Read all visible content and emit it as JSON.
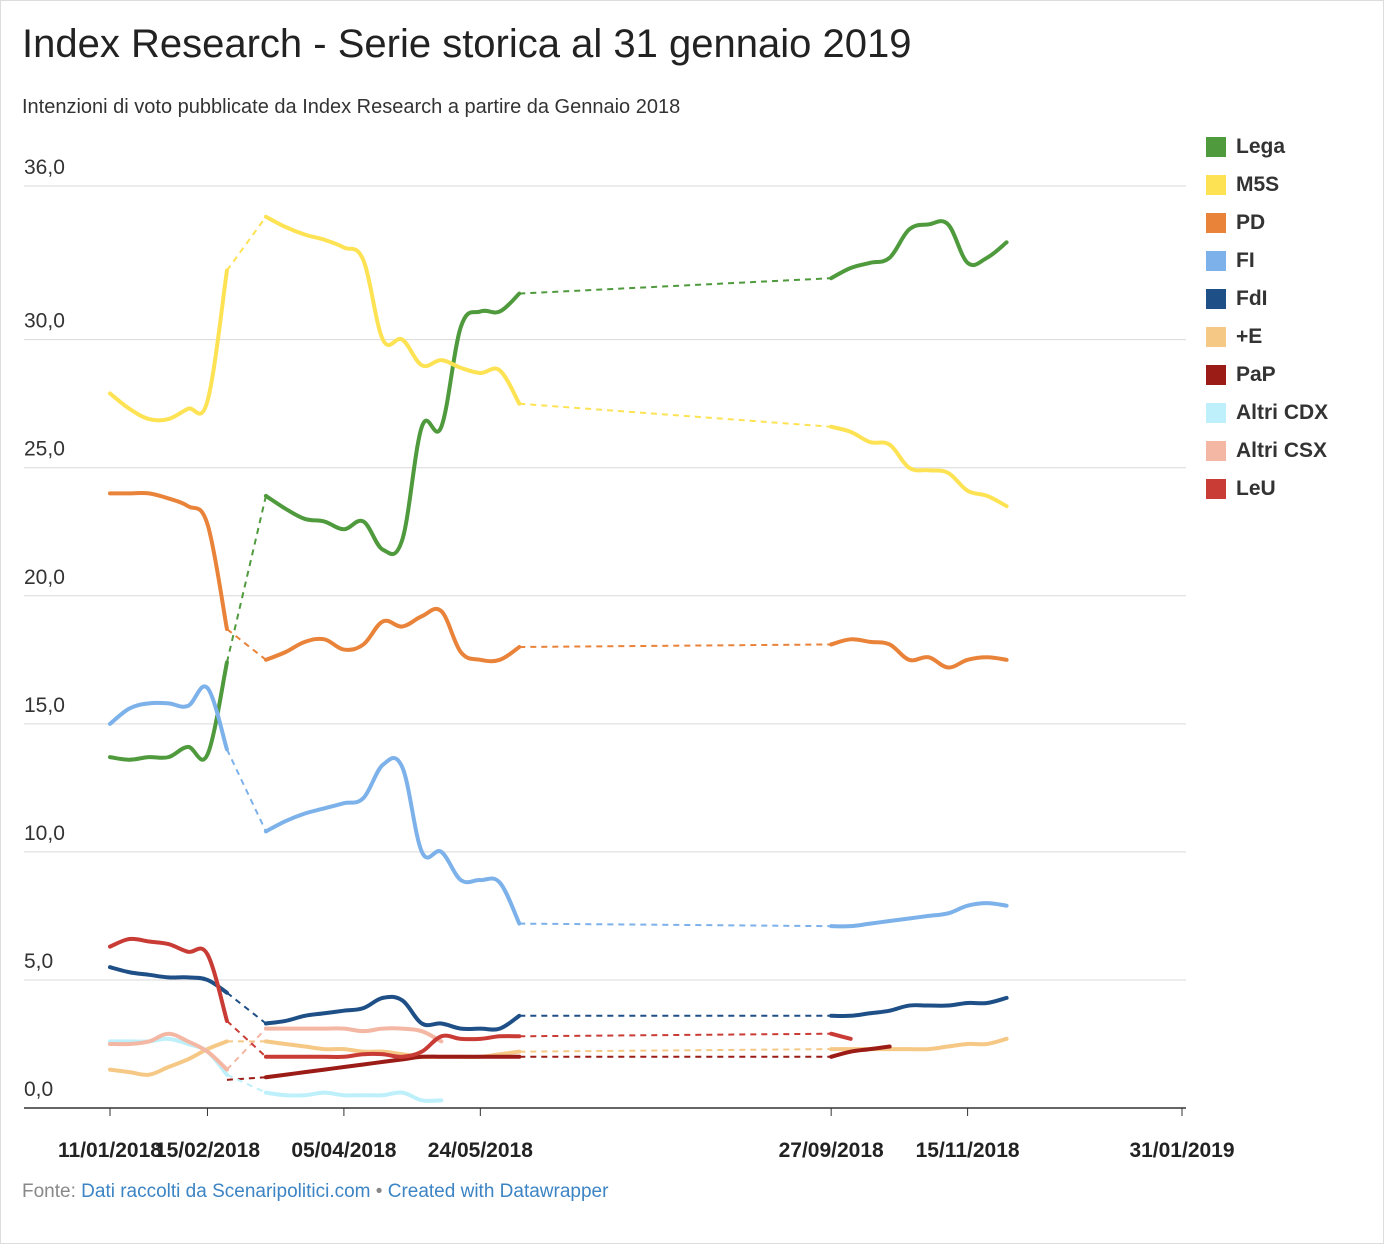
{
  "header": {
    "title": "Index Research - Serie storica al 31 gennaio 2019",
    "subtitle": "Intenzioni di voto pubblicate da Index Research a partire da Gennaio 2018"
  },
  "footer": {
    "prefix": "Fonte:",
    "source_link": "Dati raccolti da Scenaripolitici.com",
    "separator": "•",
    "credit_link": "Created with Datawrapper"
  },
  "chart_data": {
    "type": "line",
    "ylim": [
      0,
      36
    ],
    "y_ticks": [
      0,
      5,
      10,
      15,
      20,
      25,
      30,
      36
    ],
    "y_tick_labels": [
      "0,0",
      "5,0",
      "10,0",
      "15,0",
      "20,0",
      "25,0",
      "30,0",
      "36,0"
    ],
    "grid": "horizontal",
    "legend_position": "right",
    "x_tick_labels": [
      "11/01/2018",
      "15/02/2018",
      "05/04/2018",
      "24/05/2018",
      "27/09/2018",
      "15/11/2018",
      "31/01/2019"
    ],
    "x": [
      "11/01/2018",
      "18/01/2018",
      "25/01/2018",
      "01/02/2018",
      "08/02/2018",
      "15/02/2018",
      "22/02/2018",
      "08/03/2018",
      "15/03/2018",
      "22/03/2018",
      "29/03/2018",
      "05/04/2018",
      "12/04/2018",
      "19/04/2018",
      "26/04/2018",
      "03/05/2018",
      "10/05/2018",
      "17/05/2018",
      "24/05/2018",
      "31/05/2018",
      "07/06/2018",
      "27/09/2018",
      "04/10/2018",
      "11/10/2018",
      "18/10/2018",
      "25/10/2018",
      "01/11/2018",
      "08/11/2018",
      "15/11/2018",
      "22/11/2018",
      "29/11/2018",
      "06/12/2018",
      "13/12/2018",
      "20/12/2018",
      "10/01/2019",
      "17/01/2019",
      "24/01/2019",
      "31/01/2019"
    ],
    "series": [
      {
        "name": "Lega",
        "color": "#4e9a3c",
        "values": [
          13.7,
          13.6,
          13.7,
          13.7,
          14.1,
          13.8,
          17.4,
          23.9,
          23.4,
          23.0,
          22.9,
          22.6,
          22.9,
          21.8,
          22.2,
          26.6,
          26.6,
          30.5,
          31.1,
          31.1,
          31.8,
          32.4,
          32.8,
          33.0,
          33.2,
          34.3,
          34.5,
          34.5,
          33.0,
          33.2,
          33.8,
          null,
          null,
          null,
          null,
          null,
          null,
          null
        ]
      },
      {
        "name": "M5S",
        "color": "#fde354",
        "values": [
          27.9,
          27.3,
          26.9,
          26.9,
          27.3,
          27.6,
          32.7,
          34.8,
          34.4,
          34.1,
          33.9,
          33.6,
          33.1,
          30.0,
          30.0,
          29.0,
          29.2,
          28.9,
          28.7,
          28.8,
          27.5,
          26.6,
          26.4,
          26.0,
          25.9,
          25.0,
          24.9,
          24.8,
          24.1,
          23.9,
          23.5,
          null,
          null,
          null,
          null,
          null,
          null,
          null
        ]
      },
      {
        "name": "PD",
        "color": "#e9833a",
        "values": [
          24.0,
          24.0,
          24.0,
          23.8,
          23.5,
          22.8,
          18.7,
          17.5,
          17.8,
          18.2,
          18.3,
          17.9,
          18.1,
          19.0,
          18.8,
          19.2,
          19.4,
          17.8,
          17.5,
          17.5,
          18.0,
          18.1,
          18.3,
          18.2,
          18.1,
          17.5,
          17.6,
          17.2,
          17.5,
          17.6,
          17.5,
          null,
          null,
          null,
          null,
          null,
          null,
          null
        ]
      },
      {
        "name": "FI",
        "color": "#7cb1ea",
        "values": [
          15.0,
          15.6,
          15.8,
          15.8,
          15.7,
          16.4,
          14.0,
          10.8,
          11.2,
          11.5,
          11.7,
          11.9,
          12.1,
          13.4,
          13.3,
          10.0,
          10.0,
          8.9,
          8.9,
          8.8,
          7.2,
          7.1,
          7.1,
          7.2,
          7.3,
          7.4,
          7.5,
          7.6,
          7.9,
          8.0,
          7.9,
          null,
          null,
          null,
          null,
          null,
          null,
          null
        ]
      },
      {
        "name": "FdI",
        "color": "#1e4f86",
        "values": [
          5.5,
          5.3,
          5.2,
          5.1,
          5.1,
          5.0,
          4.5,
          3.3,
          3.4,
          3.6,
          3.7,
          3.8,
          3.9,
          4.3,
          4.2,
          3.3,
          3.3,
          3.1,
          3.1,
          3.1,
          3.6,
          3.6,
          3.6,
          3.7,
          3.8,
          4.0,
          4.0,
          4.0,
          4.1,
          4.1,
          4.3,
          null,
          null,
          null,
          null,
          null,
          null,
          null
        ]
      },
      {
        "name": "+E",
        "color": "#f6c885",
        "values": [
          1.5,
          1.4,
          1.3,
          1.6,
          1.9,
          2.3,
          2.6,
          2.6,
          2.5,
          2.4,
          2.3,
          2.3,
          2.2,
          2.2,
          2.1,
          2.0,
          2.0,
          2.0,
          2.0,
          2.1,
          2.2,
          2.3,
          2.3,
          2.3,
          2.3,
          2.3,
          2.3,
          2.4,
          2.5,
          2.5,
          2.7,
          null,
          null,
          null,
          null,
          null,
          null,
          null
        ]
      },
      {
        "name": "PaP",
        "color": "#9b1b16",
        "values": [
          null,
          null,
          null,
          null,
          null,
          null,
          1.1,
          1.2,
          1.3,
          1.4,
          1.5,
          1.6,
          1.7,
          1.8,
          1.9,
          2.0,
          2.0,
          2.0,
          2.0,
          2.0,
          2.0,
          2.0,
          2.2,
          2.3,
          2.4,
          null,
          null,
          null,
          null,
          null,
          null,
          null,
          null,
          null,
          null,
          null,
          null,
          null
        ]
      },
      {
        "name": "Altri CDX",
        "color": "#bdf0fa",
        "values": [
          2.6,
          2.6,
          2.6,
          2.7,
          2.5,
          2.2,
          1.3,
          0.6,
          0.5,
          0.5,
          0.6,
          0.5,
          0.5,
          0.5,
          0.6,
          0.3,
          0.3,
          null,
          null,
          null,
          null,
          null,
          null,
          null,
          null,
          null,
          null,
          null,
          null,
          null,
          null,
          null,
          null,
          null,
          null,
          null,
          null,
          null
        ]
      },
      {
        "name": "Altri CSX",
        "color": "#f3b7a4",
        "values": [
          2.5,
          2.5,
          2.6,
          2.9,
          2.6,
          2.2,
          1.5,
          3.1,
          3.1,
          3.1,
          3.1,
          3.1,
          3.0,
          3.1,
          3.1,
          3.0,
          2.6,
          null,
          null,
          null,
          null,
          null,
          null,
          null,
          null,
          null,
          null,
          null,
          null,
          null,
          null,
          null,
          null,
          null,
          null,
          null,
          null,
          null
        ]
      },
      {
        "name": "LeU",
        "color": "#c93b35",
        "values": [
          6.3,
          6.6,
          6.5,
          6.4,
          6.1,
          6.0,
          3.4,
          2.0,
          2.0,
          2.0,
          2.0,
          2.0,
          2.1,
          2.1,
          2.0,
          2.2,
          2.8,
          2.7,
          2.7,
          2.8,
          2.8,
          2.9,
          2.7,
          null,
          null,
          null,
          null,
          null,
          null,
          null,
          null,
          null,
          null,
          null,
          null,
          null,
          null,
          null
        ]
      }
    ]
  }
}
